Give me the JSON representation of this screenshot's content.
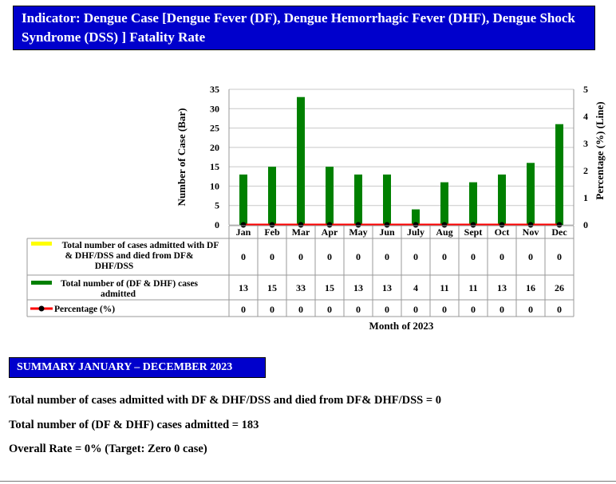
{
  "header": {
    "title": "Indicator: Dengue Case [Dengue Fever (DF), Dengue Hemorrhagic Fever (DHF), Dengue Shock Syndrome (DSS) ] Fatality Rate"
  },
  "chart_data": {
    "type": "bar",
    "categories": [
      "Jan",
      "Feb",
      "Mar",
      "Apr",
      "May",
      "Jun",
      "July",
      "Aug",
      "Sept",
      "Oct",
      "Nov",
      "Dec"
    ],
    "series": [
      {
        "name": "Total number of cases admitted with DF & DHF/DSS and died from DF& DHF/DSS",
        "values": [
          0,
          0,
          0,
          0,
          0,
          0,
          0,
          0,
          0,
          0,
          0,
          0
        ],
        "color": "#ffff00",
        "axis": "left"
      },
      {
        "name": "Total number of (DF & DHF) cases admitted",
        "values": [
          13,
          15,
          33,
          15,
          13,
          13,
          4,
          11,
          11,
          13,
          16,
          26
        ],
        "color": "#008000",
        "axis": "left"
      },
      {
        "name": "Percentage (%)",
        "type": "line",
        "values": [
          0,
          0,
          0,
          0,
          0,
          0,
          0,
          0,
          0,
          0,
          0,
          0
        ],
        "color": "#ff0000",
        "axis": "right"
      }
    ],
    "ylabel": "Number of Case (Bar)",
    "y2label": "Percentage (%) (Line)",
    "xlabel": "Month of 2023",
    "ylim": [
      0,
      35
    ],
    "yticks": [
      0,
      5,
      10,
      15,
      20,
      25,
      30,
      35
    ],
    "y2lim": [
      0,
      5
    ],
    "y2ticks": [
      0,
      1,
      2,
      3,
      4,
      5
    ],
    "grid": true,
    "data_table": true
  },
  "summary": {
    "heading": "SUMMARY JANUARY – DECEMBER 2023",
    "line1": "Total number of cases admitted with DF & DHF/DSS and died from DF& DHF/DSS = 0",
    "line2": "Total number of (DF & DHF) cases admitted = 183",
    "line3": "Overall Rate = 0% (Target: Zero 0 case)"
  }
}
